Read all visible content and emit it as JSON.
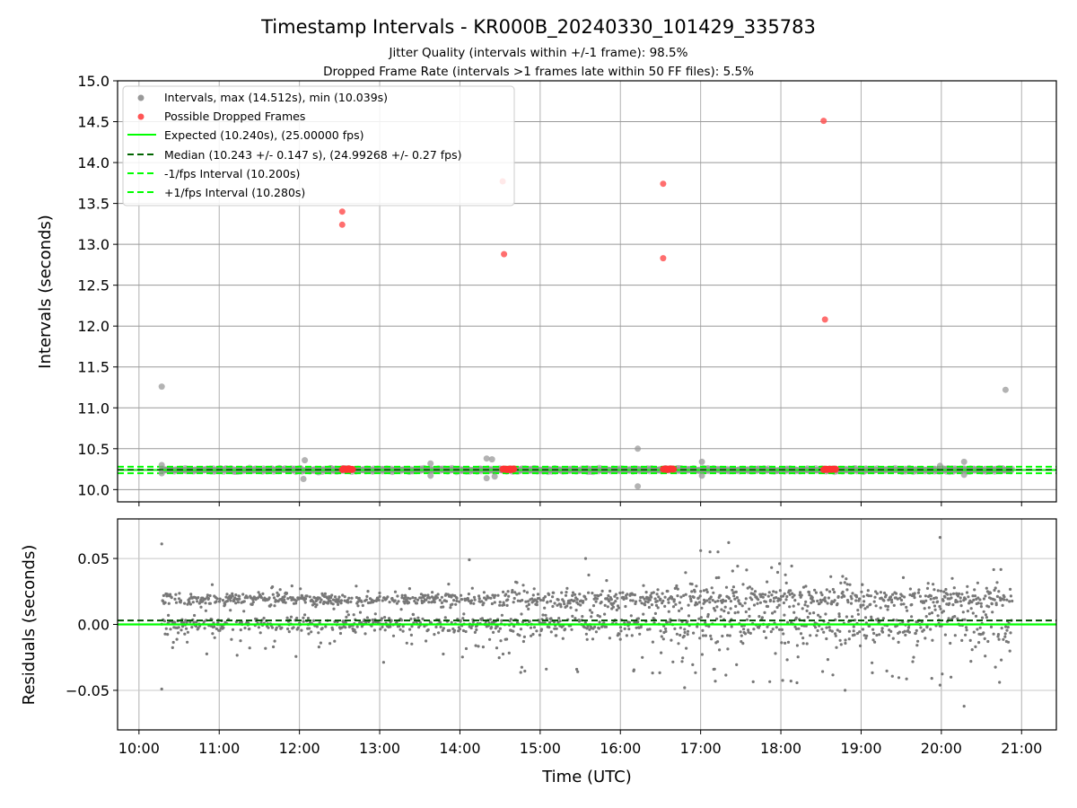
{
  "chart_data": [
    {
      "type": "scatter",
      "title": "Timestamp Intervals - KR000B_20240330_101429_335783",
      "subtitle_lines": [
        "Jitter Quality (intervals within +/-1 frame): 98.5%",
        "Dropped Frame Rate (intervals >1 frames late within 50 FF files): 5.5%"
      ],
      "xlabel": "",
      "ylabel": "Intervals (seconds)",
      "xlim": [
        "09:44",
        "21:26"
      ],
      "ylim": [
        9.85,
        15.0
      ],
      "y_ticks": [
        "10.0",
        "10.5",
        "11.0",
        "11.5",
        "12.0",
        "12.5",
        "13.0",
        "13.5",
        "14.0",
        "14.5",
        "15.0"
      ],
      "grid": true,
      "legend_position": "top-left",
      "legend": [
        {
          "label": "Intervals, max (14.512s), min (10.039s)",
          "marker": "dot",
          "color": "#999999"
        },
        {
          "label": "Possible Dropped Frames",
          "marker": "dot",
          "color": "#ff5555"
        },
        {
          "label": "Expected (10.240s), (25.00000 fps)",
          "marker": "solid",
          "color": "#00ff00"
        },
        {
          "label": "Median (10.243 +/- 0.147 s), (24.99268 +/- 0.27 fps)",
          "marker": "dashed",
          "color": "#006400"
        },
        {
          "label": "-1/fps Interval (10.200s)",
          "marker": "dashed",
          "color": "#00ff00"
        },
        {
          "label": "+1/fps Interval (10.280s)",
          "marker": "dashed",
          "color": "#00ff00"
        }
      ],
      "reference_lines": {
        "expected": 10.24,
        "median": 10.243,
        "minus_1_fps": 10.2,
        "plus_1_fps": 10.28
      },
      "series": [
        {
          "name": "Intervals, max (14.512s), min (10.039s)",
          "color": "#999999",
          "points": [
            [
              "10:17",
              11.26
            ],
            [
              "20:48",
              11.22
            ],
            [
              "12:04",
              10.36
            ],
            [
              "12:03",
              10.13
            ],
            [
              "13:38",
              10.32
            ],
            [
              "13:38",
              10.17
            ],
            [
              "14:20",
              10.38
            ],
            [
              "14:24",
              10.37
            ],
            [
              "14:20",
              10.14
            ],
            [
              "14:26",
              10.16
            ],
            [
              "16:13",
              10.5
            ],
            [
              "16:13",
              10.04
            ],
            [
              "17:01",
              10.34
            ],
            [
              "17:01",
              10.17
            ],
            [
              "20:17",
              10.34
            ],
            [
              "20:17",
              10.18
            ],
            [
              "10:17",
              10.3
            ],
            [
              "10:17",
              10.2
            ],
            [
              "19:59",
              10.29
            ]
          ],
          "band": {
            "from": "10:17",
            "to": "20:53",
            "y": 10.24,
            "spread": 0.03
          }
        },
        {
          "name": "Possible Dropped Frames",
          "color": "#ff5555",
          "points": [
            [
              "12:32",
              13.4
            ],
            [
              "12:32",
              13.24
            ],
            [
              "14:32",
              13.77
            ],
            [
              "14:33",
              12.88
            ],
            [
              "16:32",
              13.74
            ],
            [
              "16:32",
              12.83
            ],
            [
              "18:32",
              14.51
            ],
            [
              "18:33",
              12.08
            ]
          ],
          "clusters": [
            {
              "from": "12:32",
              "to": "12:40",
              "y": 10.25
            },
            {
              "from": "14:32",
              "to": "14:41",
              "y": 10.25
            },
            {
              "from": "16:32",
              "to": "16:40",
              "y": 10.25
            },
            {
              "from": "18:32",
              "to": "18:41",
              "y": 10.25
            }
          ]
        }
      ]
    },
    {
      "type": "scatter",
      "xlabel": "Time (UTC)",
      "ylabel": "Residuals (seconds)",
      "xlim": [
        "09:44",
        "21:26"
      ],
      "ylim": [
        -0.08,
        0.08
      ],
      "x_ticks": [
        "10:00",
        "11:00",
        "12:00",
        "13:00",
        "14:00",
        "15:00",
        "16:00",
        "17:00",
        "18:00",
        "19:00",
        "20:00",
        "21:00"
      ],
      "y_ticks": [
        "−0.05",
        "0.00",
        "0.05"
      ],
      "grid": true,
      "reference_lines": {
        "zero": 0.0,
        "median": 0.003
      },
      "series": [
        {
          "name": "Residuals",
          "color": "#777777",
          "outliers": [
            [
              "10:17",
              0.061
            ],
            [
              "10:17",
              -0.049
            ],
            [
              "14:07",
              0.049
            ],
            [
              "15:34",
              0.05
            ],
            [
              "16:48",
              -0.048
            ],
            [
              "17:00",
              0.056
            ],
            [
              "17:07",
              0.055
            ],
            [
              "17:13",
              0.055
            ],
            [
              "17:21",
              0.062
            ],
            [
              "18:48",
              -0.05
            ],
            [
              "19:59",
              0.066
            ],
            [
              "19:59",
              -0.046
            ],
            [
              "20:17",
              -0.062
            ],
            [
              "17:59",
              0.046
            ],
            [
              "17:11",
              -0.043
            ]
          ],
          "bands": [
            {
              "from": "10:17",
              "to": "14:30",
              "center_upper": 0.019,
              "center_lower": 0.0,
              "spread": 0.012
            },
            {
              "from": "14:30",
              "to": "16:30",
              "center_upper": 0.019,
              "center_lower": 0.0,
              "spread": 0.018
            },
            {
              "from": "16:30",
              "to": "20:53",
              "center_upper": 0.02,
              "center_lower": -0.002,
              "spread": 0.025
            }
          ]
        }
      ]
    }
  ]
}
